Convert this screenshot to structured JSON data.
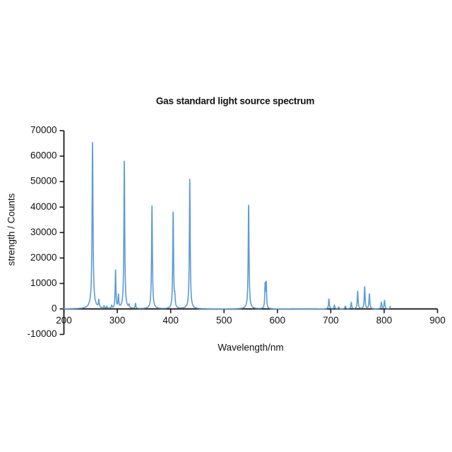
{
  "page": {
    "background": "#ffffff"
  },
  "chart_data": {
    "type": "line",
    "title": "Gas standard light source spectrum",
    "xlabel": "Wavelength/nm",
    "ylabel": "strength / Counts",
    "xlim": [
      200,
      900
    ],
    "ylim": [
      -10000,
      70000
    ],
    "xticks": [
      200,
      300,
      400,
      500,
      600,
      700,
      800,
      900
    ],
    "yticks": [
      70000,
      60000,
      50000,
      40000,
      30000,
      20000,
      10000,
      0,
      -10000
    ],
    "grid": false,
    "legend": null,
    "line_color": "#5B9BD5",
    "axis_color": "#1a1a1a",
    "background": "#ffffff",
    "data_range_nm": [
      200,
      812
    ],
    "peaks": [
      {
        "wl": 253.65,
        "counts": 63500,
        "g": 1.0
      },
      {
        "wl": 253.65,
        "counts": 2000,
        "g": 6.0
      },
      {
        "wl": 265.4,
        "counts": 2900,
        "g": 0.8
      },
      {
        "wl": 275.3,
        "counts": 900,
        "g": 0.7
      },
      {
        "wl": 280.4,
        "counts": 800,
        "g": 0.7
      },
      {
        "wl": 289.4,
        "counts": 1100,
        "g": 0.7
      },
      {
        "wl": 296.73,
        "counts": 15000,
        "g": 0.8
      },
      {
        "wl": 302.15,
        "counts": 5000,
        "g": 0.8
      },
      {
        "wl": 313.16,
        "counts": 57000,
        "g": 0.9
      },
      {
        "wl": 313.16,
        "counts": 1000,
        "g": 4.0
      },
      {
        "wl": 322.0,
        "counts": 1200,
        "g": 0.7
      },
      {
        "wl": 334.15,
        "counts": 2000,
        "g": 0.8
      },
      {
        "wl": 365.01,
        "counts": 39600,
        "g": 0.9
      },
      {
        "wl": 365.01,
        "counts": 800,
        "g": 4.0
      },
      {
        "wl": 404.66,
        "counts": 37900,
        "g": 0.9
      },
      {
        "wl": 407.78,
        "counts": 3900,
        "g": 0.8
      },
      {
        "wl": 435.84,
        "counts": 50200,
        "g": 0.9
      },
      {
        "wl": 435.84,
        "counts": 800,
        "g": 4.0
      },
      {
        "wl": 546.07,
        "counts": 40200,
        "g": 0.9
      },
      {
        "wl": 546.07,
        "counts": 800,
        "g": 4.0
      },
      {
        "wl": 576.96,
        "counts": 9200,
        "g": 0.8
      },
      {
        "wl": 579.07,
        "counts": 9700,
        "g": 0.8
      },
      {
        "wl": 696.54,
        "counts": 3900,
        "g": 0.9
      },
      {
        "wl": 706.72,
        "counts": 1500,
        "g": 0.9
      },
      {
        "wl": 714.7,
        "counts": 700,
        "g": 0.9
      },
      {
        "wl": 727.29,
        "counts": 1100,
        "g": 0.9
      },
      {
        "wl": 738.4,
        "counts": 2500,
        "g": 0.9
      },
      {
        "wl": 750.39,
        "counts": 6900,
        "g": 0.9
      },
      {
        "wl": 763.51,
        "counts": 8700,
        "g": 0.9
      },
      {
        "wl": 772.4,
        "counts": 5800,
        "g": 0.9
      },
      {
        "wl": 794.82,
        "counts": 2600,
        "g": 0.9
      },
      {
        "wl": 800.61,
        "counts": 3300,
        "g": 0.9
      },
      {
        "wl": 811.53,
        "counts": 900,
        "g": 0.9
      }
    ]
  }
}
